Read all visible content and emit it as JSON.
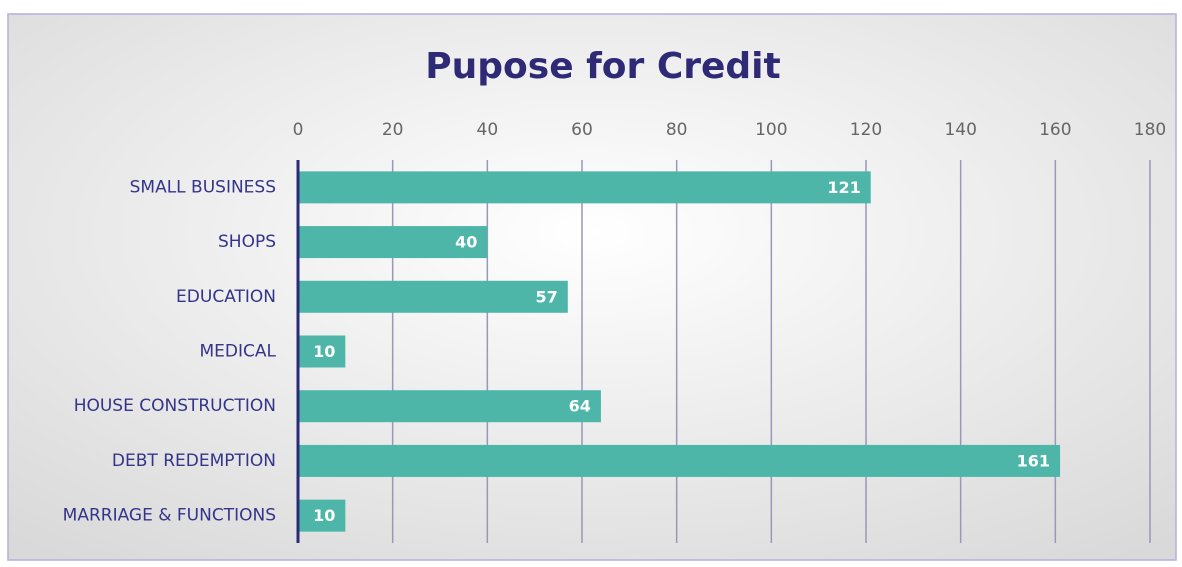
{
  "chart_data": {
    "type": "bar",
    "orientation": "horizontal",
    "title": "Pupose for Credit",
    "categories": [
      "SMALL BUSINESS",
      "SHOPS",
      "EDUCATION",
      "MEDICAL",
      "HOUSE CONSTRUCTION",
      "DEBT REDEMPTION",
      "MARRIAGE & FUNCTIONS"
    ],
    "values": [
      121,
      40,
      57,
      10,
      64,
      161,
      10
    ],
    "color": "#4db6a9",
    "xlim": [
      0,
      180
    ],
    "xticks": [
      0,
      20,
      40,
      60,
      80,
      100,
      120,
      140,
      160,
      180
    ],
    "grid": true
  }
}
